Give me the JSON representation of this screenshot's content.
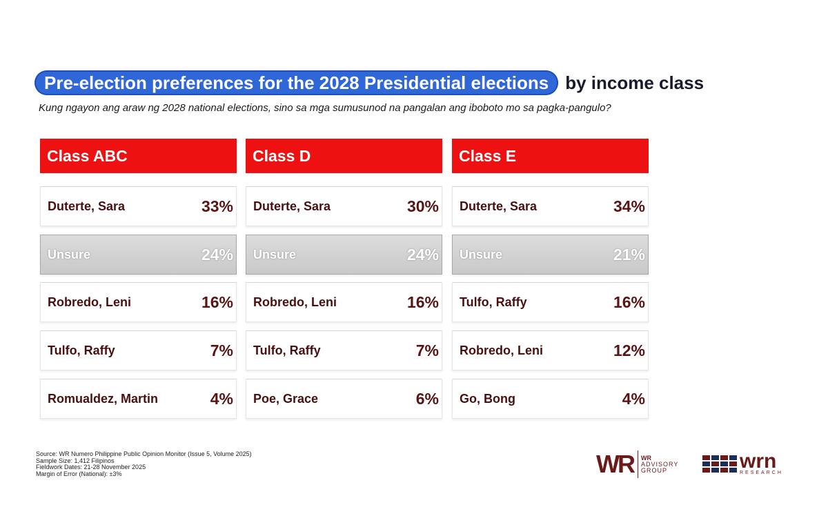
{
  "header": {
    "title_highlight": "Pre-election preferences for the 2028 Presidential elections",
    "title_rest": "by income class",
    "subtitle": "Kung ngayon ang araw ng 2028 national elections, sino sa mga sumusunod na pangalan ang iboboto mo sa pagka-pangulo?"
  },
  "colors": {
    "title_pill": "#2f66d8",
    "column_header": "#ee1111",
    "text_maroon": "#5a1414",
    "unsure_bar": "#cfcfcf"
  },
  "chart_data": {
    "type": "table",
    "title": "Pre-election preferences for the 2028 Presidential elections by income class",
    "columns": [
      {
        "name": "Class ABC",
        "rows": [
          {
            "label": "Duterte, Sara",
            "display": "33%",
            "value": 33,
            "unsure": false
          },
          {
            "label": "Unsure",
            "display": "24%",
            "value": 24,
            "unsure": true
          },
          {
            "label": "Robredo, Leni",
            "display": "16%",
            "value": 16,
            "unsure": false
          },
          {
            "label": "Tulfo, Raffy",
            "display": "7%",
            "value": 7,
            "unsure": false
          },
          {
            "label": "Romualdez, Martin",
            "display": "4%",
            "value": 4,
            "unsure": false
          }
        ]
      },
      {
        "name": "Class D",
        "rows": [
          {
            "label": "Duterte, Sara",
            "display": "30%",
            "value": 30,
            "unsure": false
          },
          {
            "label": "Unsure",
            "display": "24%",
            "value": 24,
            "unsure": true
          },
          {
            "label": "Robredo, Leni",
            "display": "16%",
            "value": 16,
            "unsure": false
          },
          {
            "label": "Tulfo, Raffy",
            "display": "7%",
            "value": 7,
            "unsure": false
          },
          {
            "label": "Poe, Grace",
            "display": "6%",
            "value": 6,
            "unsure": false
          }
        ]
      },
      {
        "name": "Class E",
        "rows": [
          {
            "label": "Duterte, Sara",
            "display": "34%",
            "value": 34,
            "unsure": false
          },
          {
            "label": "Unsure",
            "display": "21%",
            "value": 21,
            "unsure": true
          },
          {
            "label": "Tulfo, Raffy",
            "display": "16%",
            "value": 16,
            "unsure": false
          },
          {
            "label": "Robredo, Leni",
            "display": "12%",
            "value": 12,
            "unsure": false
          },
          {
            "label": "Go, Bong",
            "display": "4%",
            "value": 4,
            "unsure": false
          }
        ]
      }
    ]
  },
  "footer": {
    "source": "Source: WR Numero Philippine Public Opinion Monitor (Issue 5, Volume 2025)",
    "sample": "Sample Size: 1,412 Filipinos",
    "fieldwork": "Fieldwork Dates: 21-28 November 2025",
    "margin": "Margin of Error (National): ±3%"
  },
  "logos": {
    "wr_mark": "WR",
    "wr_line1": "WR",
    "wr_line2": "ADVISORY",
    "wr_line3": "GROUP",
    "wrn_word": "wrn",
    "wrn_sub": "RESEARCH"
  }
}
